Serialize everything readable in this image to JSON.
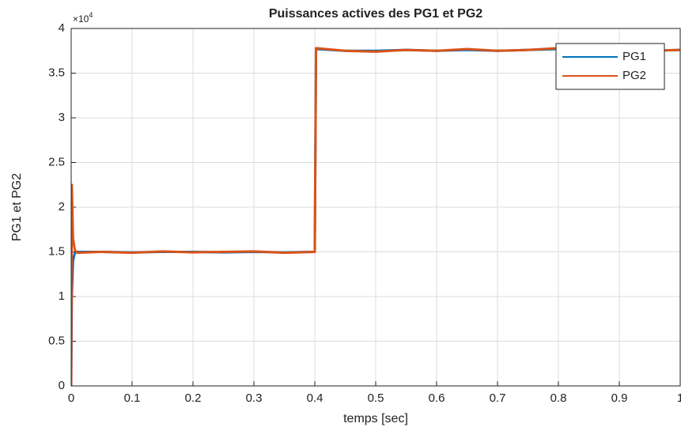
{
  "chart_data": {
    "type": "line",
    "title": "Puissances actives des PG1 et PG2",
    "xlabel": "temps [sec]",
    "ylabel": "PG1 et PG2",
    "y_exponent_base": "×10",
    "y_exponent_power": "4",
    "x": [
      0,
      0.001,
      0.003,
      0.006,
      0.01,
      0.05,
      0.1,
      0.15,
      0.2,
      0.25,
      0.3,
      0.35,
      0.399,
      0.4,
      0.402,
      0.45,
      0.5,
      0.55,
      0.6,
      0.65,
      0.7,
      0.75,
      0.8,
      0.85,
      0.9,
      0.95,
      1
    ],
    "series": [
      {
        "name": "PG1",
        "color": "#0072bd",
        "values": [
          0,
          10000,
          14000,
          14900,
          15000,
          15000,
          14950,
          15000,
          15000,
          14950,
          15000,
          14950,
          15000,
          15000,
          37700,
          37500,
          37500,
          37600,
          37500,
          37600,
          37500,
          37600,
          37700,
          37600,
          37600,
          37500,
          37600
        ]
      },
      {
        "name": "PG2",
        "color": "#d95319",
        "values": [
          0,
          22500,
          16500,
          15200,
          14900,
          15000,
          14900,
          15050,
          14950,
          15000,
          15050,
          14900,
          15000,
          15000,
          37800,
          37500,
          37400,
          37600,
          37500,
          37700,
          37500,
          37600,
          37800,
          37600,
          37700,
          37500,
          37600
        ]
      }
    ],
    "xlim": [
      0,
      1
    ],
    "xticks": [
      0,
      0.1,
      0.2,
      0.3,
      0.4,
      0.5,
      0.6,
      0.7,
      0.8,
      0.9,
      1
    ],
    "ylim": [
      0,
      40000
    ],
    "yticks": [
      0,
      {
        "value": 5000,
        "label": "0.5"
      },
      {
        "value": 10000,
        "label": "1"
      },
      {
        "value": 15000,
        "label": "1.5"
      },
      {
        "value": 20000,
        "label": "2"
      },
      {
        "value": 25000,
        "label": "2.5"
      },
      {
        "value": 30000,
        "label": "3"
      },
      {
        "value": 35000,
        "label": "3.5"
      },
      {
        "value": 40000,
        "label": "4"
      }
    ],
    "grid": true,
    "legend": "top-right"
  }
}
